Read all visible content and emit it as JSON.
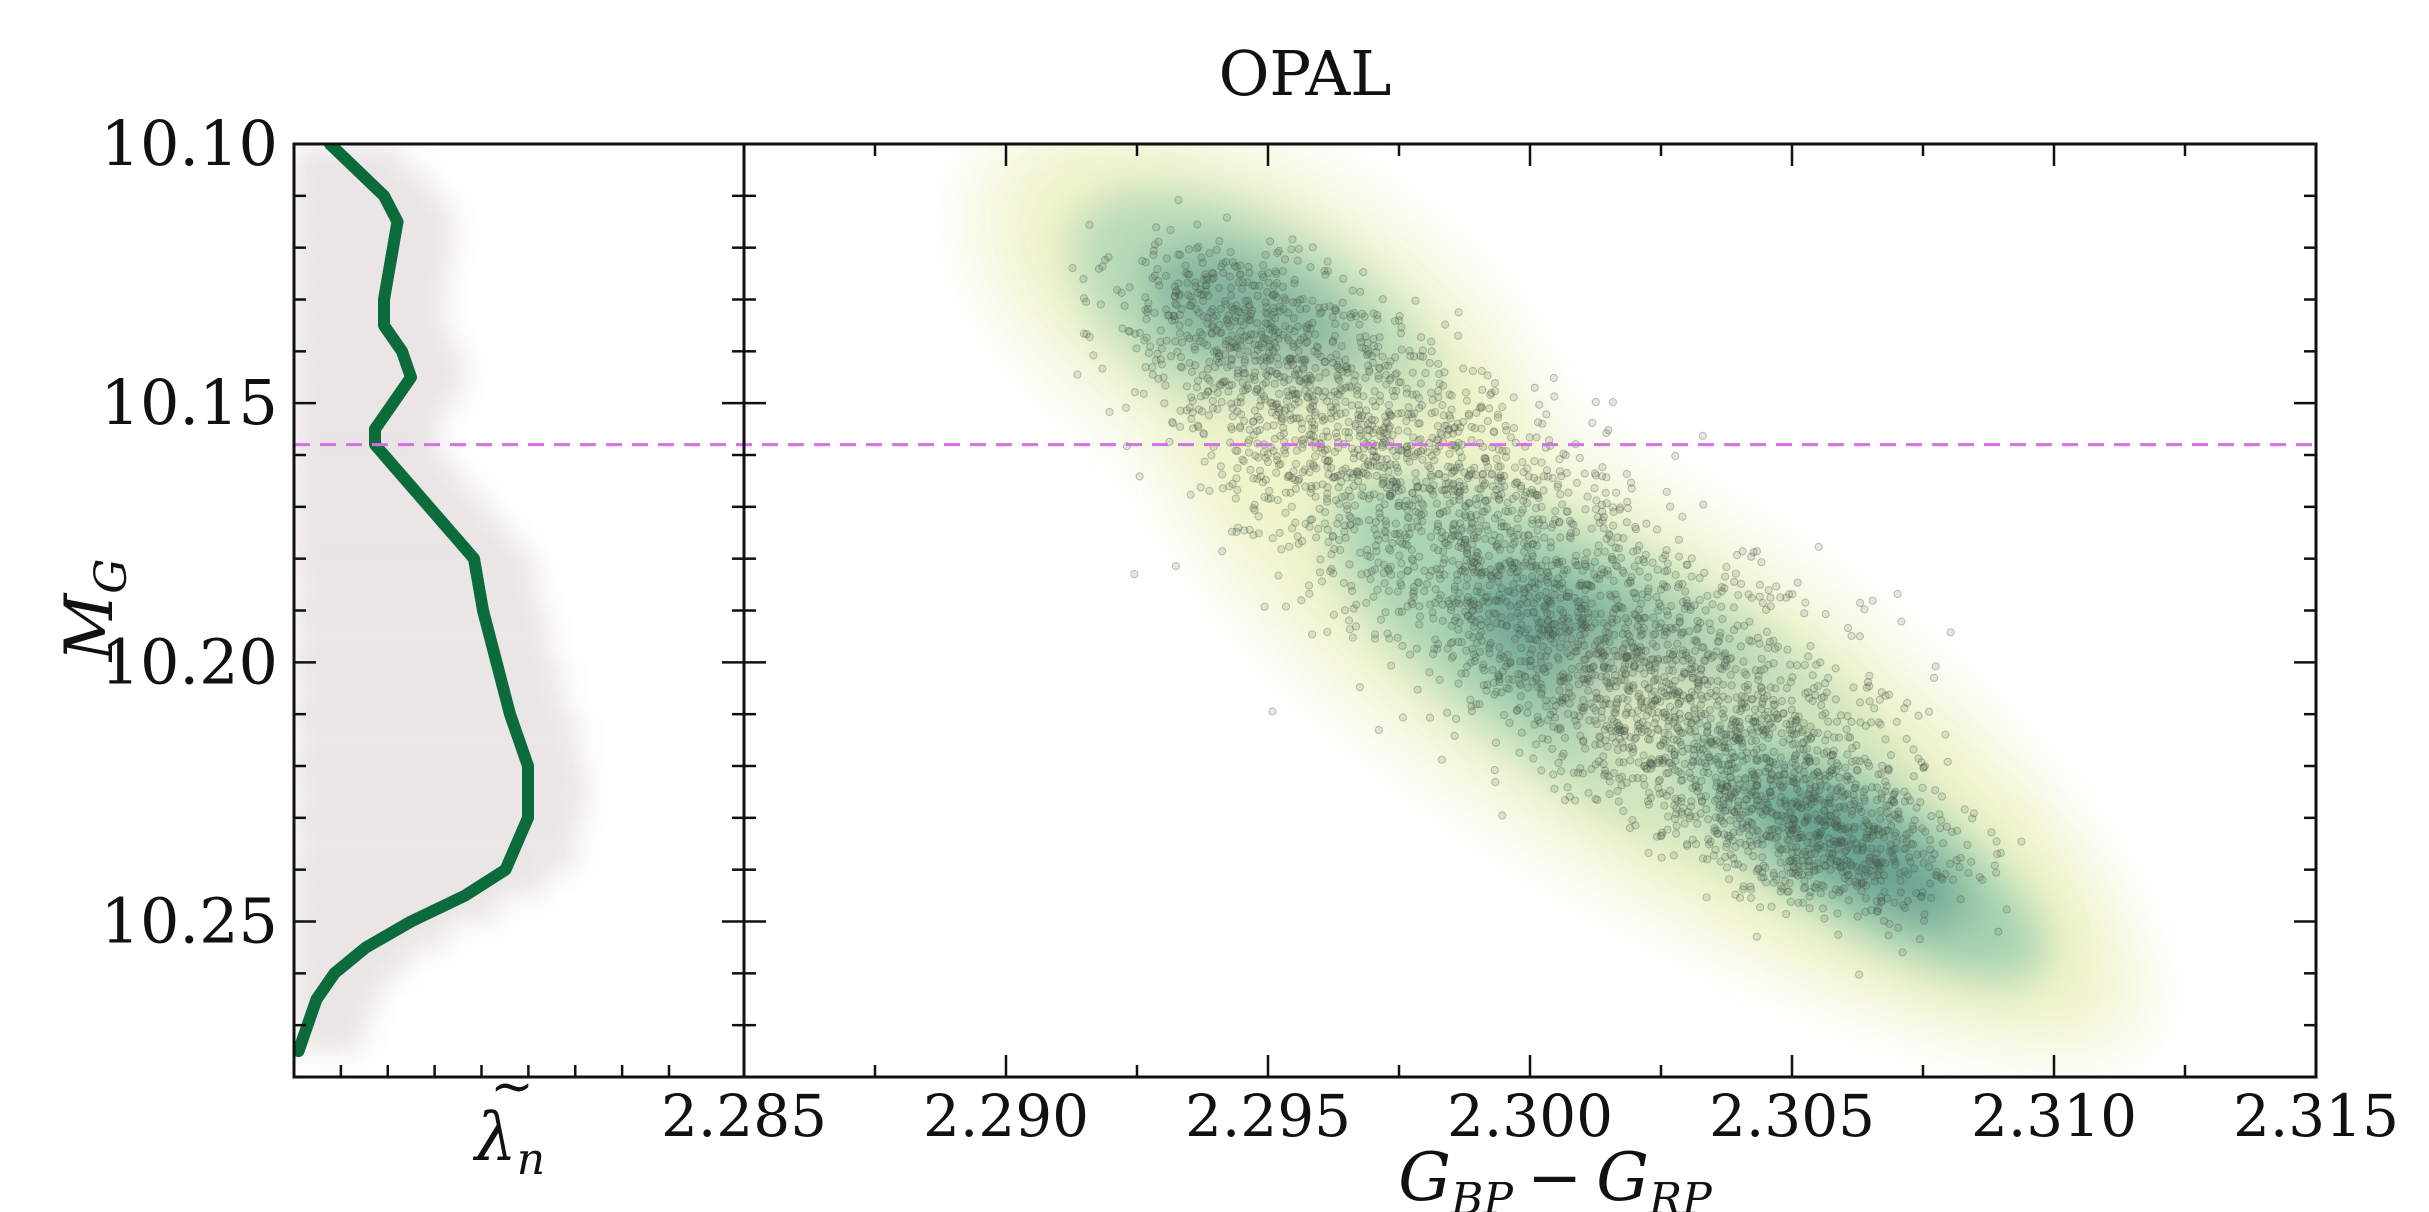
{
  "chart_data": {
    "type": "scatter",
    "title": "OPAL",
    "main_panel": {
      "xlabel": "G_BP − G_RP",
      "xlabel_parts": {
        "base1": "G",
        "sub1": "BP",
        "op": "−",
        "base2": "G",
        "sub2": "RP"
      },
      "ylabel": "M_G",
      "ylabel_parts": {
        "base": "M",
        "sub": "G"
      },
      "xlim": [
        2.285,
        2.315
      ],
      "ylim_inverted": [
        10.28,
        10.1
      ],
      "xticks": [
        2.285,
        2.29,
        2.295,
        2.3,
        2.305,
        2.31,
        2.315
      ],
      "xtick_labels": [
        "2.285",
        "2.290",
        "2.295",
        "2.300",
        "2.305",
        "2.310",
        "2.315"
      ],
      "yticks": [
        10.1,
        10.15,
        10.2,
        10.25
      ],
      "ytick_labels": [
        "10.10",
        "10.15",
        "10.20",
        "10.25"
      ],
      "density_blobs": [
        {
          "x": 2.2948,
          "y": 10.135,
          "sx": 0.0028,
          "sy": 0.014,
          "angle": 30,
          "weight": 0.75
        },
        {
          "x": 2.302,
          "y": 10.205,
          "sx": 0.0048,
          "sy": 0.016,
          "angle": 32,
          "weight": 0.9
        },
        {
          "x": 2.3062,
          "y": 10.236,
          "sx": 0.003,
          "sy": 0.01,
          "angle": 32,
          "weight": 1.0
        }
      ],
      "track": {
        "x_start": 2.2935,
        "y_start": 10.125,
        "x_end": 2.3065,
        "y_end": 10.243,
        "half_width_x": 0.0035
      },
      "point_count": 4000,
      "colors": {
        "points": "#4a5a4a",
        "density_low": "#eef3c8",
        "density_mid": "#8cc6a8",
        "density_high": "#3a7d7a"
      }
    },
    "side_panel": {
      "xlabel": "λ̃_n",
      "xlabel_parts": {
        "base": "λ",
        "accent": "~",
        "sub": "n"
      },
      "green_curve": {
        "y": [
          10.1,
          10.105,
          10.11,
          10.115,
          10.12,
          10.125,
          10.13,
          10.135,
          10.14,
          10.145,
          10.15,
          10.155,
          10.158,
          10.162,
          10.167,
          10.172,
          10.177,
          10.18,
          10.19,
          10.2,
          10.21,
          10.22,
          10.23,
          10.24,
          10.245,
          10.25,
          10.255,
          10.26,
          10.265,
          10.27,
          10.275
        ],
        "x": [
          0.08,
          0.14,
          0.2,
          0.23,
          0.22,
          0.21,
          0.2,
          0.2,
          0.24,
          0.26,
          0.22,
          0.18,
          0.18,
          0.22,
          0.27,
          0.32,
          0.37,
          0.4,
          0.42,
          0.45,
          0.48,
          0.52,
          0.52,
          0.47,
          0.38,
          0.26,
          0.16,
          0.09,
          0.05,
          0.03,
          0.01
        ]
      },
      "colors": {
        "curve": "#0b6b3a",
        "haze": "#8a6a6a"
      }
    },
    "reference_line": {
      "y": 10.158,
      "style": "dashed",
      "color": "#d86ee8"
    }
  }
}
